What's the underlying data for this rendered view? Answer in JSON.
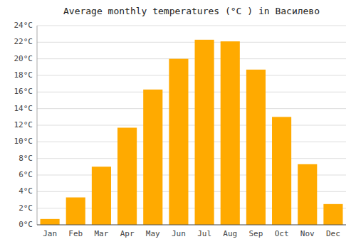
{
  "chart_data": {
    "type": "bar",
    "title": "Average monthly temperatures (°C ) in Василево",
    "categories": [
      "Jan",
      "Feb",
      "Mar",
      "Apr",
      "May",
      "Jun",
      "Jul",
      "Aug",
      "Sep",
      "Oct",
      "Nov",
      "Dec"
    ],
    "values": [
      0.7,
      3.3,
      7.0,
      11.7,
      16.3,
      20.0,
      22.3,
      22.1,
      18.7,
      13.0,
      7.3,
      2.5
    ],
    "color": "#FFAA00",
    "ylim": [
      0,
      24
    ],
    "yticks": [
      {
        "value": 0,
        "label": "0°C"
      },
      {
        "value": 2,
        "label": "2°C"
      },
      {
        "value": 4,
        "label": "4°C"
      },
      {
        "value": 6,
        "label": "6°C"
      },
      {
        "value": 8,
        "label": "8°C"
      },
      {
        "value": 10,
        "label": "10°C"
      },
      {
        "value": 12,
        "label": "12°C"
      },
      {
        "value": 14,
        "label": "14°C"
      },
      {
        "value": 16,
        "label": "16°C"
      },
      {
        "value": 18,
        "label": "18°C"
      },
      {
        "value": 20,
        "label": "20°C"
      },
      {
        "value": 22,
        "label": "22°C"
      },
      {
        "value": 24,
        "label": "24°C"
      }
    ],
    "grid": true
  }
}
